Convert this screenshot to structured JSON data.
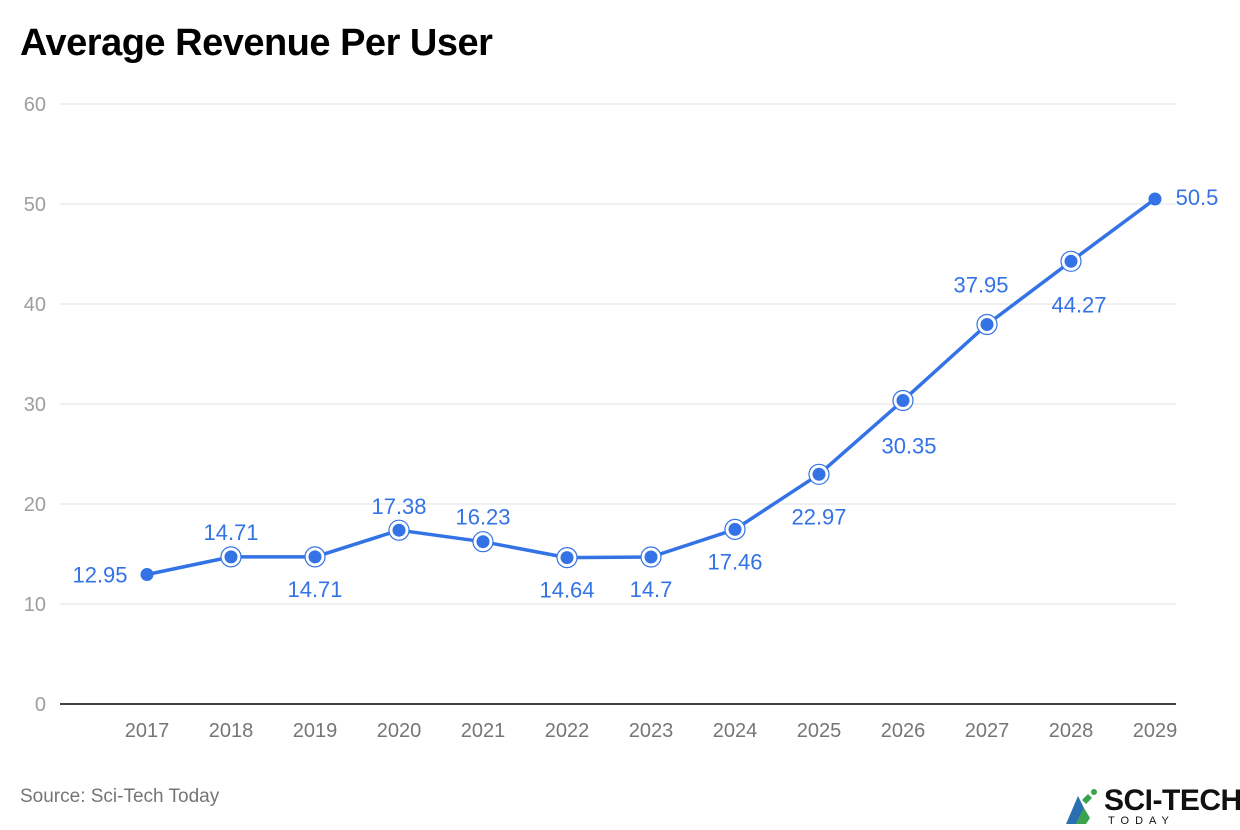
{
  "title": "Average Revenue Per User",
  "source": "Source: Sci-Tech Today",
  "logo": {
    "name": "SCI-TECH",
    "sub": "TODAY"
  },
  "colors": {
    "line": "#3373e5",
    "grid": "#e0e0e0",
    "axis": "#000000",
    "tick": "#9e9e9e",
    "label": "#3373e5"
  },
  "chart_data": {
    "type": "line",
    "title": "Average Revenue Per User",
    "categories": [
      "2017",
      "2018",
      "2019",
      "2020",
      "2021",
      "2022",
      "2023",
      "2024",
      "2025",
      "2026",
      "2027",
      "2028",
      "2029"
    ],
    "series": [
      {
        "name": "Average Revenue Per User",
        "values": [
          12.95,
          14.71,
          14.71,
          17.38,
          16.23,
          14.64,
          14.7,
          17.46,
          22.97,
          30.35,
          37.95,
          44.27,
          50.5
        ]
      }
    ],
    "data_labels": [
      "12.95",
      "14.71",
      "14.71",
      "17.38",
      "16.23",
      "14.64",
      "14.7",
      "17.46",
      "22.97",
      "30.35",
      "37.95",
      "44.27",
      "50.5"
    ],
    "ylim": [
      0,
      60
    ],
    "yticks": [
      "0",
      "10",
      "20",
      "30",
      "40",
      "50",
      "60"
    ],
    "xlabel": "",
    "ylabel": "",
    "grid": true
  }
}
